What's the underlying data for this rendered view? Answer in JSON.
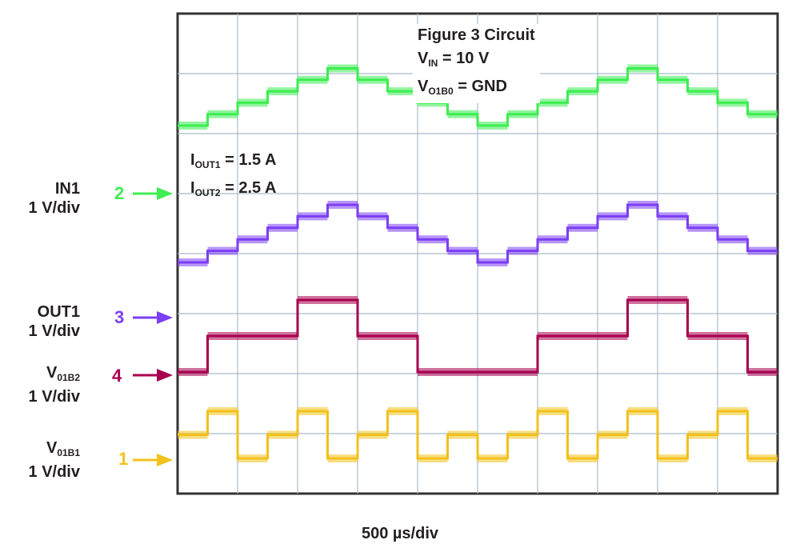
{
  "chart_data": {
    "type": "line",
    "title": "",
    "timebase": "500 µs/div",
    "grid": true,
    "divisions": {
      "x": 10,
      "y": 8
    },
    "annotation": {
      "line1": "Figure 3 Circuit",
      "line2_main": "V",
      "line2_sub": "IN",
      "line2_rest": "= 10 V",
      "line3_main": "V",
      "line3_sub": "O1B0",
      "line3_rest": "= GND"
    },
    "load_annotation": {
      "line1_main": "I",
      "line1_sub": "OUT1",
      "line1_rest": "= 1.5 A",
      "line2_main": "I",
      "line2_sub": "OUT2",
      "line2_rest": "= 2.5 A"
    },
    "series": [
      {
        "name": "IN1",
        "label_main": "IN1",
        "label_sub": "",
        "scale": "1 V/div",
        "channel": "2",
        "color": "#3ded52",
        "levels": [
          0,
          1,
          2,
          3,
          4,
          5,
          4,
          3,
          2,
          1,
          0,
          1,
          2,
          3,
          4,
          5,
          4,
          3,
          2,
          1
        ]
      },
      {
        "name": "OUT1",
        "label_main": "OUT1",
        "label_sub": "",
        "scale": "1 V/div",
        "channel": "3",
        "color": "#7b3ff2",
        "levels": [
          0,
          1,
          2,
          3,
          4,
          5,
          4,
          3,
          2,
          1,
          0,
          1,
          2,
          3,
          4,
          5,
          4,
          3,
          2,
          1
        ]
      },
      {
        "name": "V01B2",
        "label_main": "V",
        "label_sub": "01B2",
        "scale": "1 V/div",
        "channel": "4",
        "color": "#a8004f",
        "levels": [
          0,
          1,
          1,
          1,
          2,
          2,
          1,
          1,
          0,
          0,
          0,
          0,
          1,
          1,
          1,
          2,
          2,
          1,
          1,
          0
        ]
      },
      {
        "name": "V01B1",
        "label_main": "V",
        "label_sub": "01B1",
        "scale": "1 V/div",
        "channel": "1",
        "color": "#f2c11c",
        "levels": [
          1,
          2,
          0,
          1,
          2,
          0,
          1,
          2,
          0,
          1,
          0,
          1,
          2,
          0,
          1,
          2,
          0,
          1,
          2,
          0
        ]
      }
    ]
  }
}
